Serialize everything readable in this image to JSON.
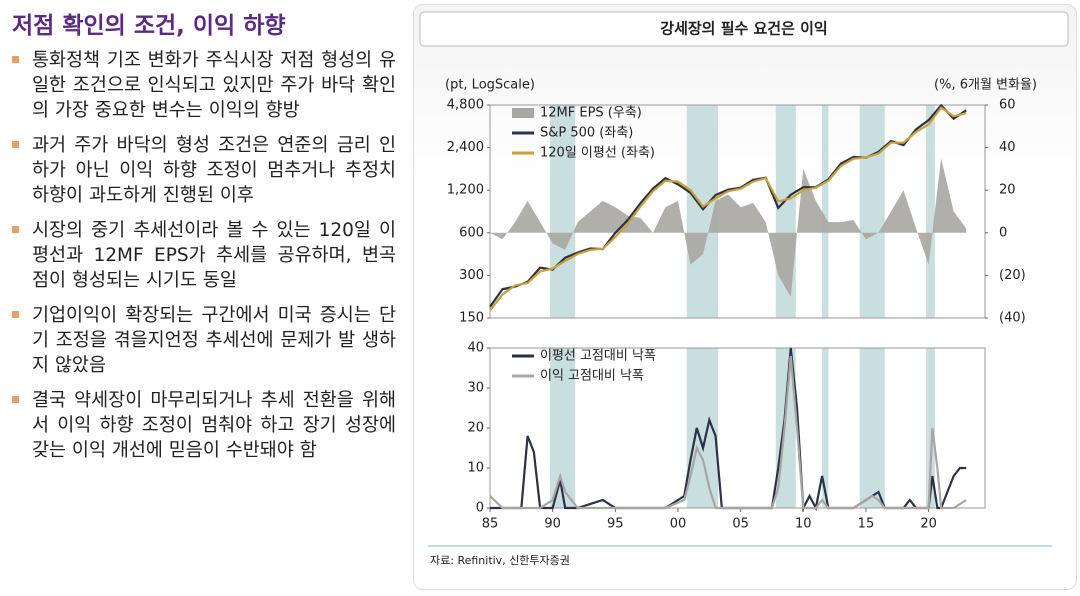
{
  "slide": {
    "title": "저점 확인의 조건, 이익 하향",
    "bullets": [
      "통화정책 기조 변화가 주식시장 저점 형성의 유일한 조건으로 인식되고 있지만 주가 바닥 확인의 가장 중요한 변수는 이익의 향방",
      "과거 주가 바닥의 형성 조건은 연준의 금리 인하가 아닌 이익 하향 조정이 멈추거나 추정치 하향이 과도하게 진행된 이후",
      "시장의 중기 추세선이라 볼 수 있는 120일 이 평선과 12MF EPS가 추세를 공유하며, 변곡 점이 형성되는 시기도 동일",
      "기업이익이 확장되는 구간에서 미국 증시는 단기 조정을 겪을지언정 추세선에 문제가 발 생하지 않았음",
      "결국 약세장이 마무리되거나 추세 전환을 위해서 이익 하향 조정이 멈춰야 하고 장기 성장에 갖는 이익 개선에 믿음이 수반돼야 함"
    ]
  },
  "panel_title": "강세장의 필수 요건은 이익",
  "source": "자료: Refinitiv, 신한투자증권",
  "chart_data": [
    {
      "type": "line",
      "ylabel": "(pt, LogScale)",
      "y2label": "(%, 6개월 변화율)",
      "log_scale": true,
      "xlim": [
        1985,
        2024.5
      ],
      "ylim": [
        150,
        4800
      ],
      "yticks": [
        {
          "value": 4800,
          "label": "4,800"
        },
        {
          "value": 2400,
          "label": "2,400"
        },
        {
          "value": 1200,
          "label": "1,200"
        },
        600,
        300,
        150
      ],
      "y2lim": [
        -40,
        60
      ],
      "y2ticks": [
        60,
        40,
        20,
        0,
        {
          "value": -20,
          "label": "(20)"
        },
        {
          "value": -40,
          "label": "(40)"
        }
      ],
      "highlight_ranges": [
        [
          1989.8,
          1991.8
        ],
        [
          2000.7,
          2003.2
        ],
        [
          2007.8,
          2009.4
        ],
        [
          2011.5,
          2012
        ],
        [
          2014.5,
          2016.5
        ],
        [
          2019.8,
          2020.5
        ]
      ],
      "x": [
        1985,
        1986,
        1987,
        1988,
        1989,
        1990,
        1991,
        1992,
        1993,
        1994,
        1995,
        1996,
        1997,
        1998,
        1999,
        2000,
        2001,
        2002,
        2003,
        2004,
        2005,
        2006,
        2007,
        2008,
        2009,
        2010,
        2011,
        2012,
        2013,
        2014,
        2015,
        2016,
        2017,
        2018,
        2019,
        2020,
        2021,
        2022,
        2023
      ],
      "series": [
        {
          "name": "12MF EPS (우축)",
          "color": "#a8a6a2",
          "axis": "y2",
          "style": "area",
          "values": [
            0,
            -3,
            5,
            15,
            5,
            -5,
            -8,
            5,
            10,
            15,
            12,
            8,
            7,
            0,
            12,
            15,
            -15,
            -10,
            15,
            18,
            12,
            14,
            5,
            -20,
            -30,
            30,
            15,
            5,
            5,
            6,
            -3,
            0,
            10,
            20,
            2,
            -15,
            35,
            10,
            2
          ]
        },
        {
          "name": "S&P 500 (좌축)",
          "color": "#2b3147",
          "values": [
            180,
            240,
            250,
            270,
            340,
            330,
            400,
            435,
            465,
            460,
            600,
            740,
            970,
            1230,
            1460,
            1320,
            1150,
            880,
            1110,
            1210,
            1250,
            1420,
            1470,
            900,
            1115,
            1260,
            1260,
            1430,
            1850,
            2060,
            2040,
            2240,
            2670,
            2500,
            3230,
            3750,
            4770,
            3840,
            4400
          ]
        },
        {
          "name": "120일 이평선 (좌축)",
          "color": "#c9a13a",
          "values": [
            170,
            220,
            255,
            265,
            320,
            335,
            380,
            425,
            455,
            462,
            560,
            700,
            920,
            1180,
            1400,
            1380,
            1200,
            920,
            1050,
            1180,
            1230,
            1380,
            1460,
            1000,
            1050,
            1200,
            1250,
            1400,
            1780,
            2000,
            2050,
            2180,
            2600,
            2600,
            3100,
            3500,
            4600,
            4000,
            4200
          ]
        }
      ]
    },
    {
      "type": "line",
      "xlim": [
        1985,
        2024.5
      ],
      "xticks": [
        {
          "value": 1985,
          "label": "85"
        },
        {
          "value": 1990,
          "label": "90"
        },
        {
          "value": 1995,
          "label": "95"
        },
        {
          "value": 2000,
          "label": "00"
        },
        {
          "value": 2005,
          "label": "05"
        },
        {
          "value": 2010,
          "label": "10"
        },
        {
          "value": 2015,
          "label": "15"
        },
        {
          "value": 2020,
          "label": "20"
        }
      ],
      "ylim": [
        0,
        40
      ],
      "yticks": [
        0,
        10,
        20,
        30,
        40
      ],
      "highlight_ranges": [
        [
          1989.8,
          1991.8
        ],
        [
          2000.7,
          2003.2
        ],
        [
          2007.8,
          2009.4
        ],
        [
          2011.5,
          2012
        ],
        [
          2014.5,
          2016.5
        ],
        [
          2019.8,
          2020.5
        ]
      ],
      "x": [
        1985,
        1986,
        1987.5,
        1988,
        1988.5,
        1989,
        1990,
        1990.6,
        1991,
        1992,
        1994,
        1995,
        1998,
        1999,
        2000.5,
        2001,
        2001.5,
        2002,
        2002.5,
        2003,
        2003.5,
        2004,
        2006,
        2007.5,
        2008,
        2008.5,
        2009,
        2009.5,
        2010,
        2010.5,
        2011,
        2011.5,
        2012,
        2014,
        2015.5,
        2016,
        2016.5,
        2018,
        2018.5,
        2019,
        2020,
        2020.3,
        2020.7,
        2021,
        2022,
        2022.5,
        2023
      ],
      "series": [
        {
          "name": "이평선 고점대비 낙폭",
          "color": "#2b3147",
          "values": [
            0,
            0,
            0,
            18,
            14,
            0,
            0,
            7,
            0,
            0,
            2,
            0,
            0,
            0,
            3,
            12,
            20,
            15,
            22,
            18,
            0,
            0,
            0,
            0,
            10,
            22,
            40,
            25,
            0,
            3,
            0,
            8,
            0,
            0,
            3,
            4,
            0,
            0,
            2,
            0,
            0,
            8,
            0,
            0,
            8,
            10,
            10
          ]
        },
        {
          "name": "이익 고점대비 낙폭",
          "color": "#a8a6a2",
          "values": [
            3,
            0,
            0,
            0,
            0,
            0,
            2,
            8,
            4,
            0,
            0,
            0,
            0,
            0,
            2,
            8,
            15,
            12,
            5,
            0,
            0,
            0,
            0,
            0,
            5,
            20,
            38,
            20,
            0,
            0,
            0,
            2,
            0,
            0,
            3,
            2,
            0,
            0,
            0,
            0,
            0,
            20,
            10,
            0,
            0,
            1,
            2
          ]
        }
      ]
    }
  ]
}
